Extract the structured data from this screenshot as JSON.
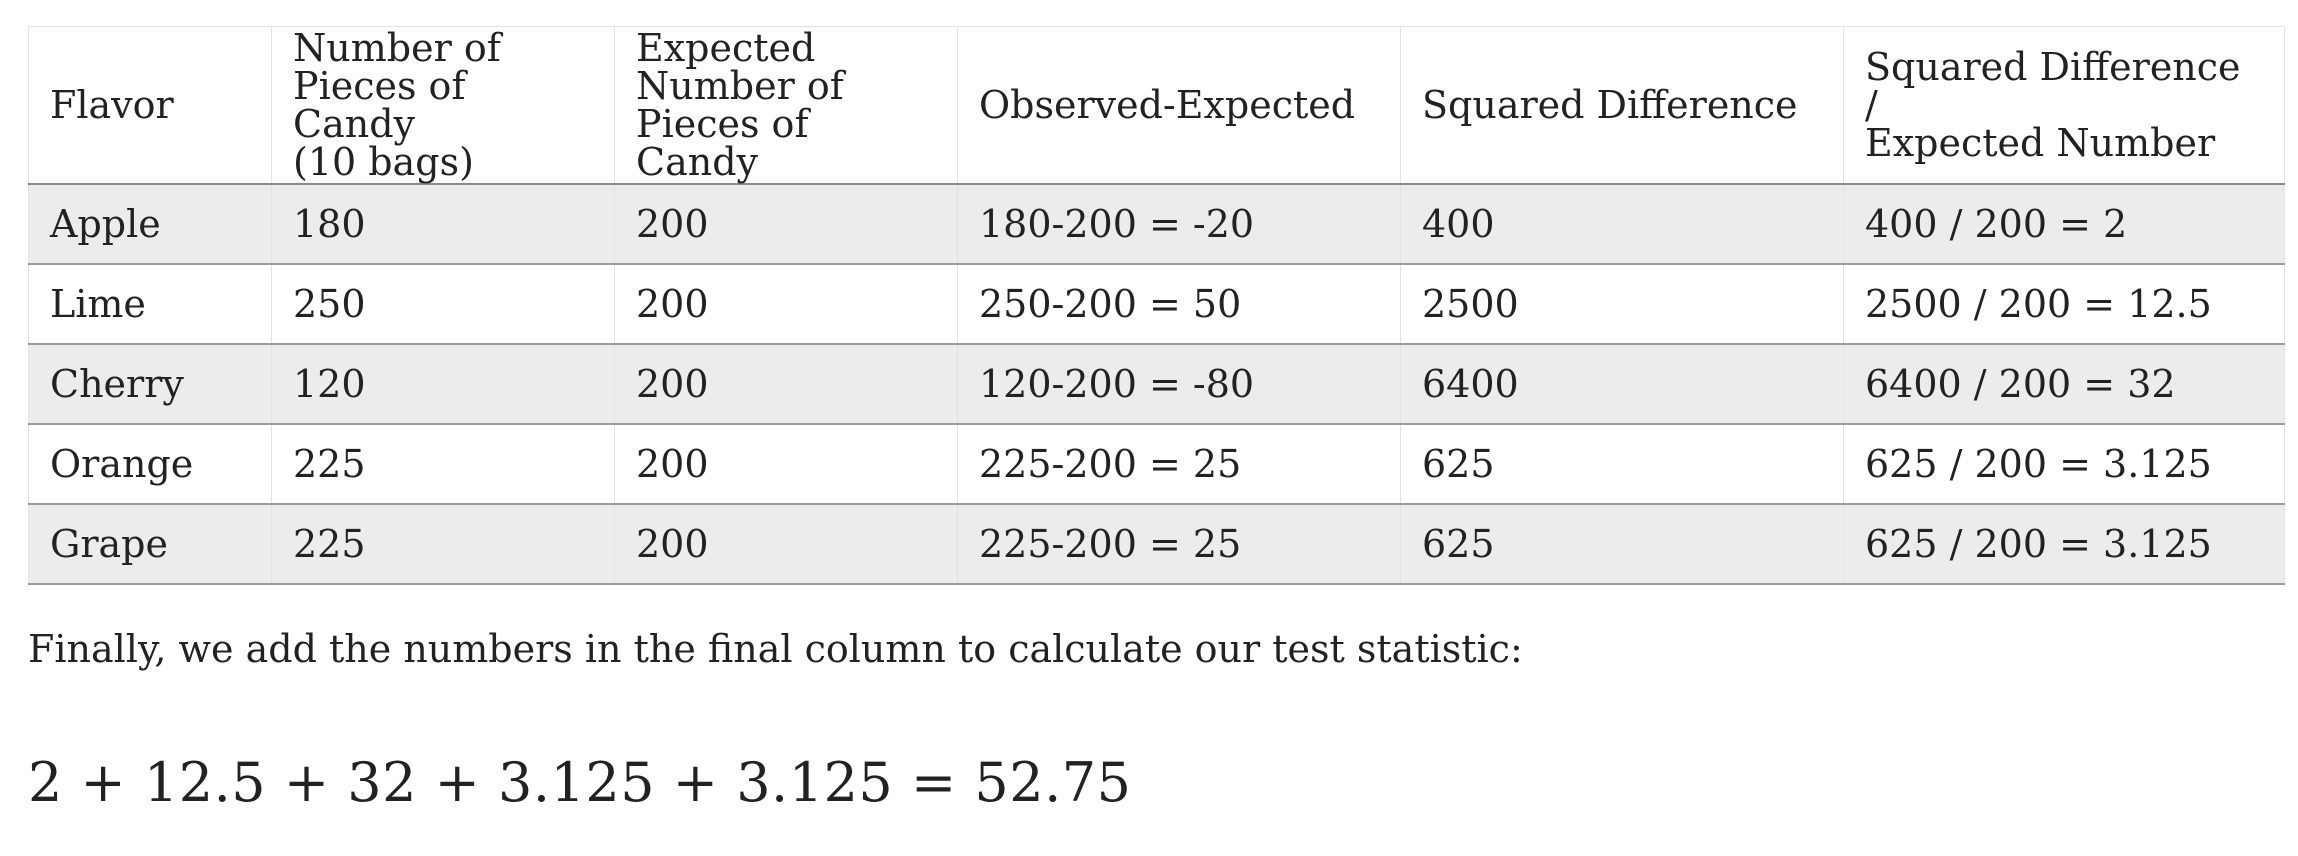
{
  "table": {
    "headers": [
      [
        "Flavor"
      ],
      [
        "Number of",
        "Pieces of Candy",
        "(10 bags)"
      ],
      [
        "Expected",
        "Number of",
        "Pieces of Candy"
      ],
      [
        "Observed-Expected"
      ],
      [
        "Squared Difference"
      ],
      [
        "Squared Difference /",
        "Expected Number"
      ]
    ],
    "rows": [
      [
        "Apple",
        "180",
        "200",
        "180-200 = -20",
        "400",
        "400 / 200 = 2"
      ],
      [
        "Lime",
        "250",
        "200",
        "250-200 = 50",
        "2500",
        "2500 / 200 = 12.5"
      ],
      [
        "Cherry",
        "120",
        "200",
        "120-200 = -80",
        "6400",
        "6400 / 200 = 32"
      ],
      [
        "Orange",
        "225",
        "200",
        "225-200 = 25",
        "625",
        "625 / 200 = 3.125"
      ],
      [
        "Grape",
        "225",
        "200",
        "225-200 = 25",
        "625",
        "625 / 200 = 3.125"
      ]
    ]
  },
  "paragraph": "Finally, we add the numbers in the final column to calculate our test statistic:",
  "formula": "2 + 12.5 + 32 + 3.125 + 3.125 = 52.75"
}
